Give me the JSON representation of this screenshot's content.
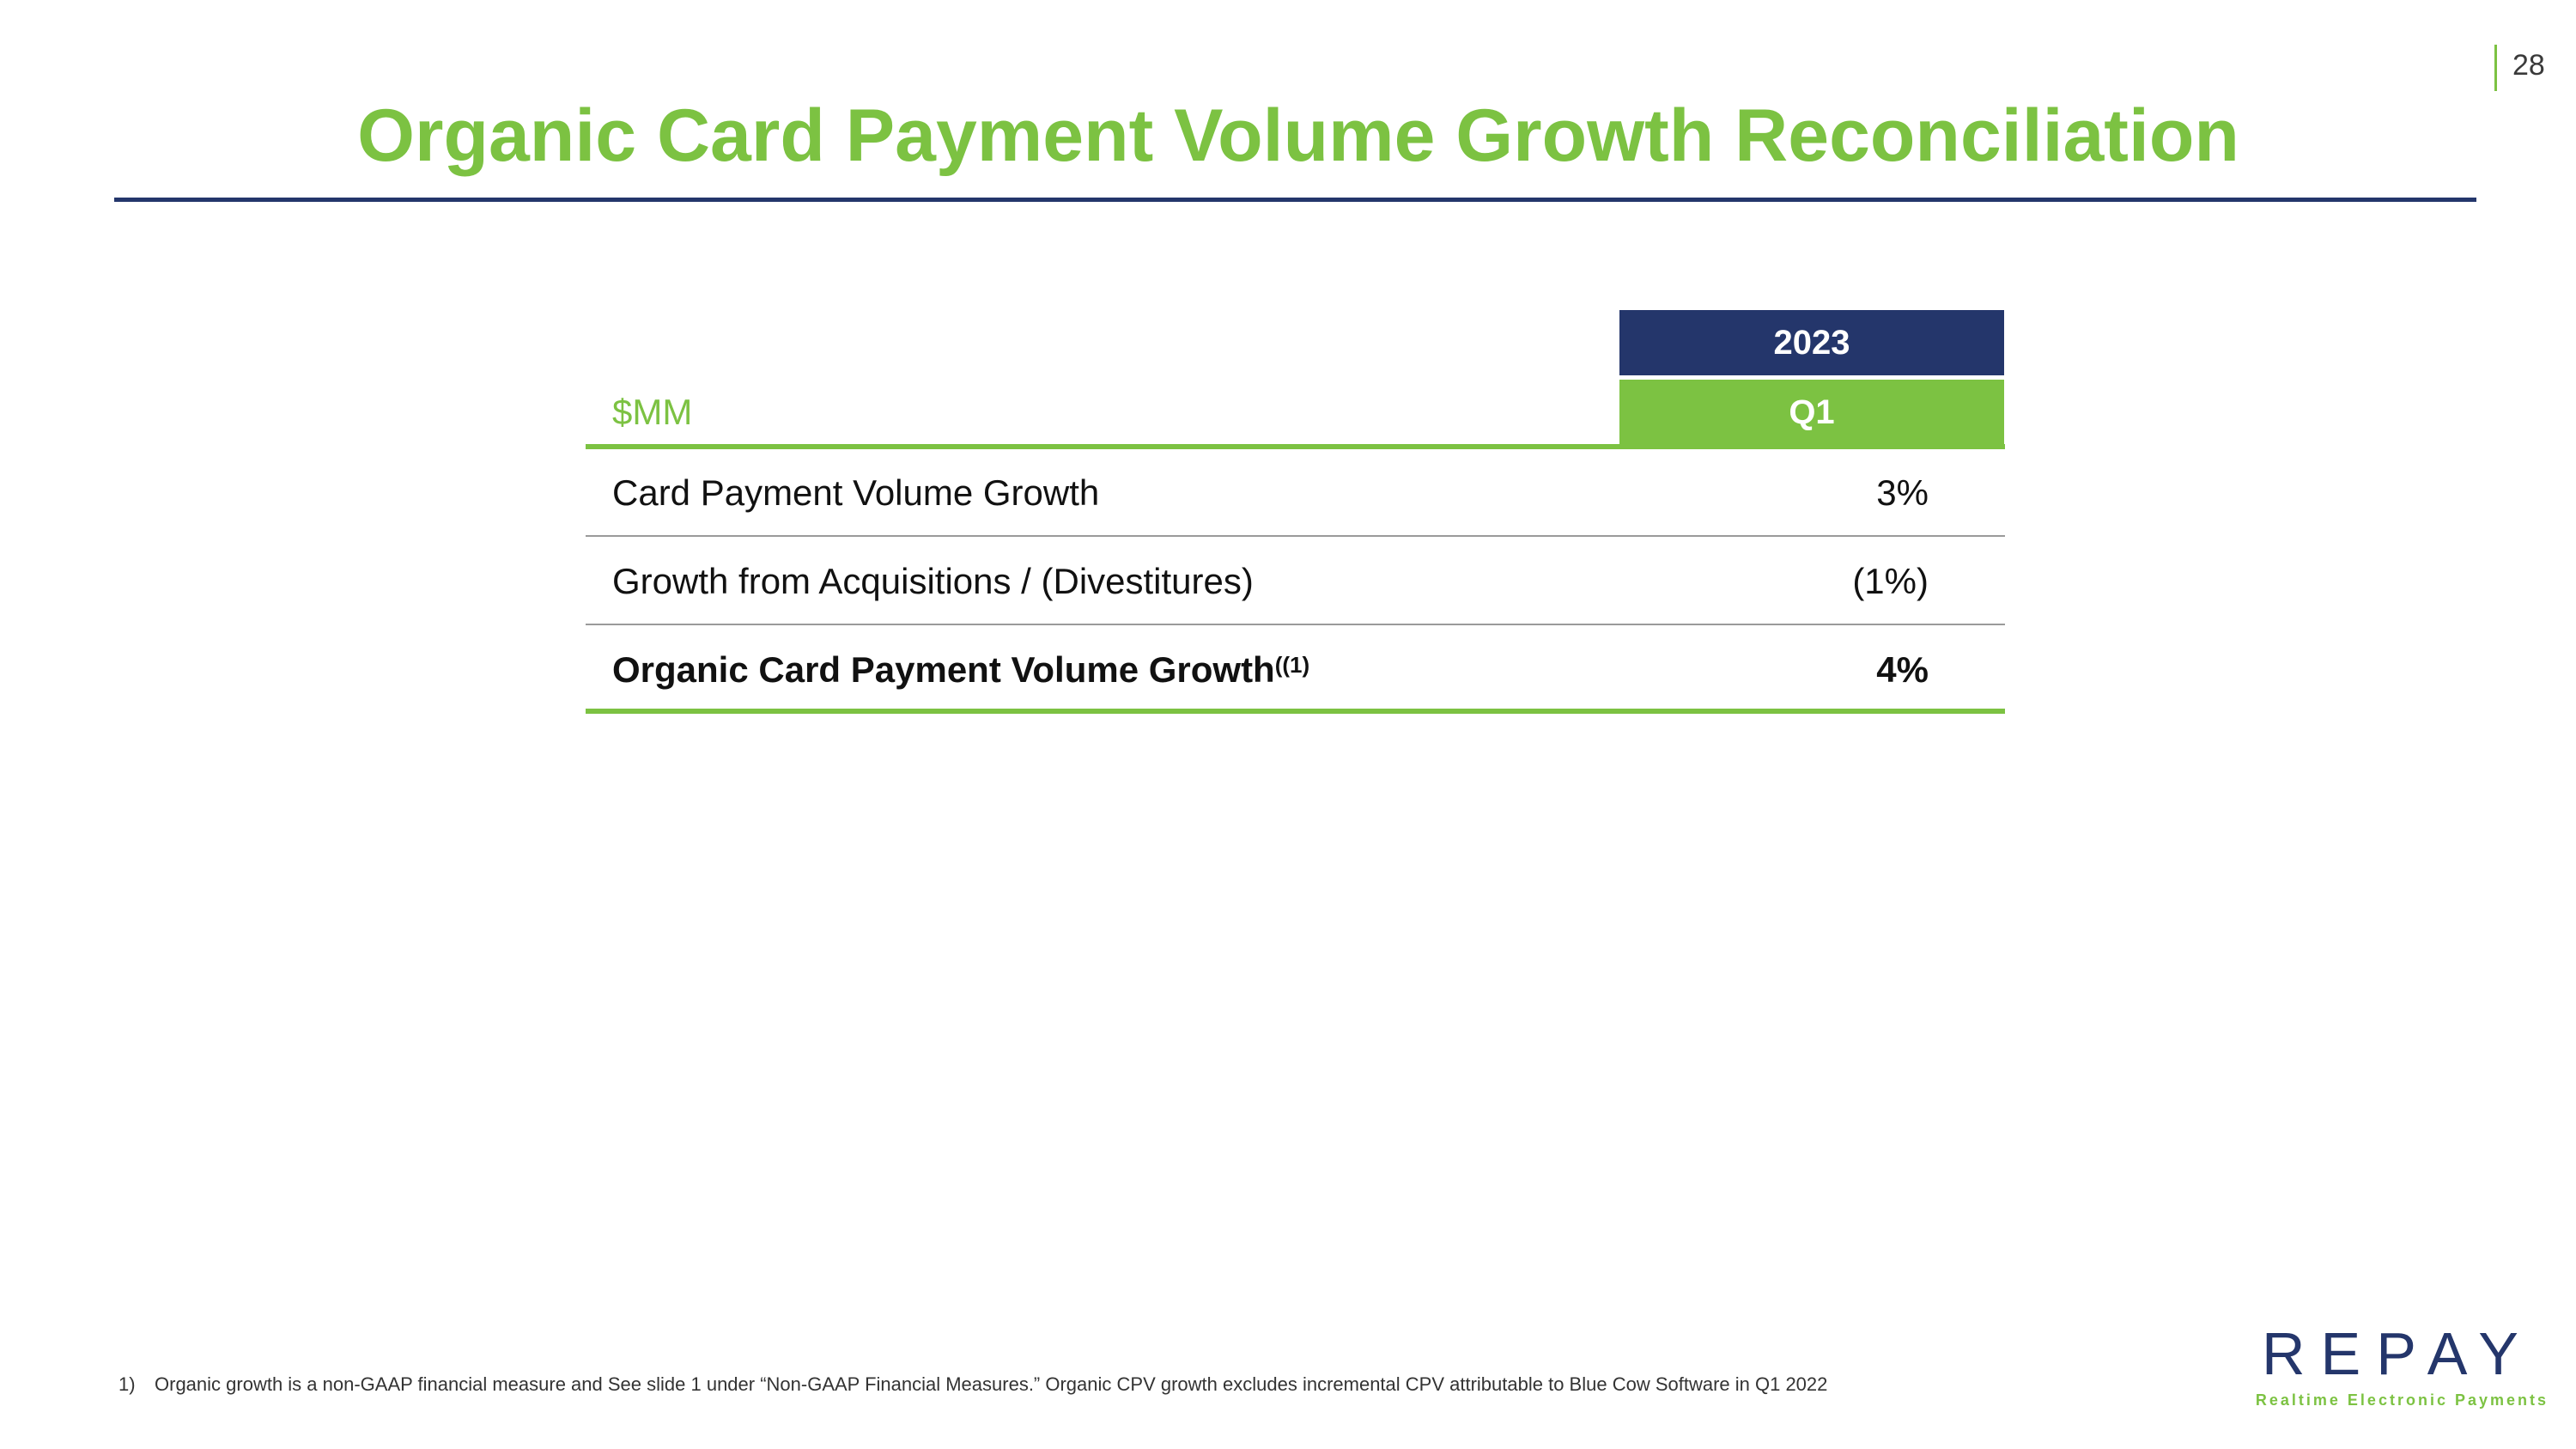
{
  "page_number": "28",
  "title": "Organic Card Payment Volume Growth Reconciliation",
  "table": {
    "unit_label": "$MM",
    "header_year": "2023",
    "header_period": "Q1",
    "rows": [
      {
        "label": "Card Payment Volume Growth",
        "value": "3%"
      },
      {
        "label": "Growth from Acquisitions / (Divestitures)",
        "value": "(1%)"
      },
      {
        "label": "Organic Card Payment Volume Growth",
        "superscript": "((1)",
        "value": "4%"
      }
    ]
  },
  "footnote": {
    "number": "1)",
    "text": "Organic growth is a non-GAAP financial measure and See slide 1 under “Non-GAAP Financial Measures.” Organic CPV growth excludes incremental CPV attributable to Blue Cow Software in Q1 2022"
  },
  "logo": {
    "wordmark": "REPAY",
    "tagline": "Realtime Electronic Payments"
  },
  "colors": {
    "brand_green": "#7cc242",
    "brand_navy": "#24366b"
  }
}
